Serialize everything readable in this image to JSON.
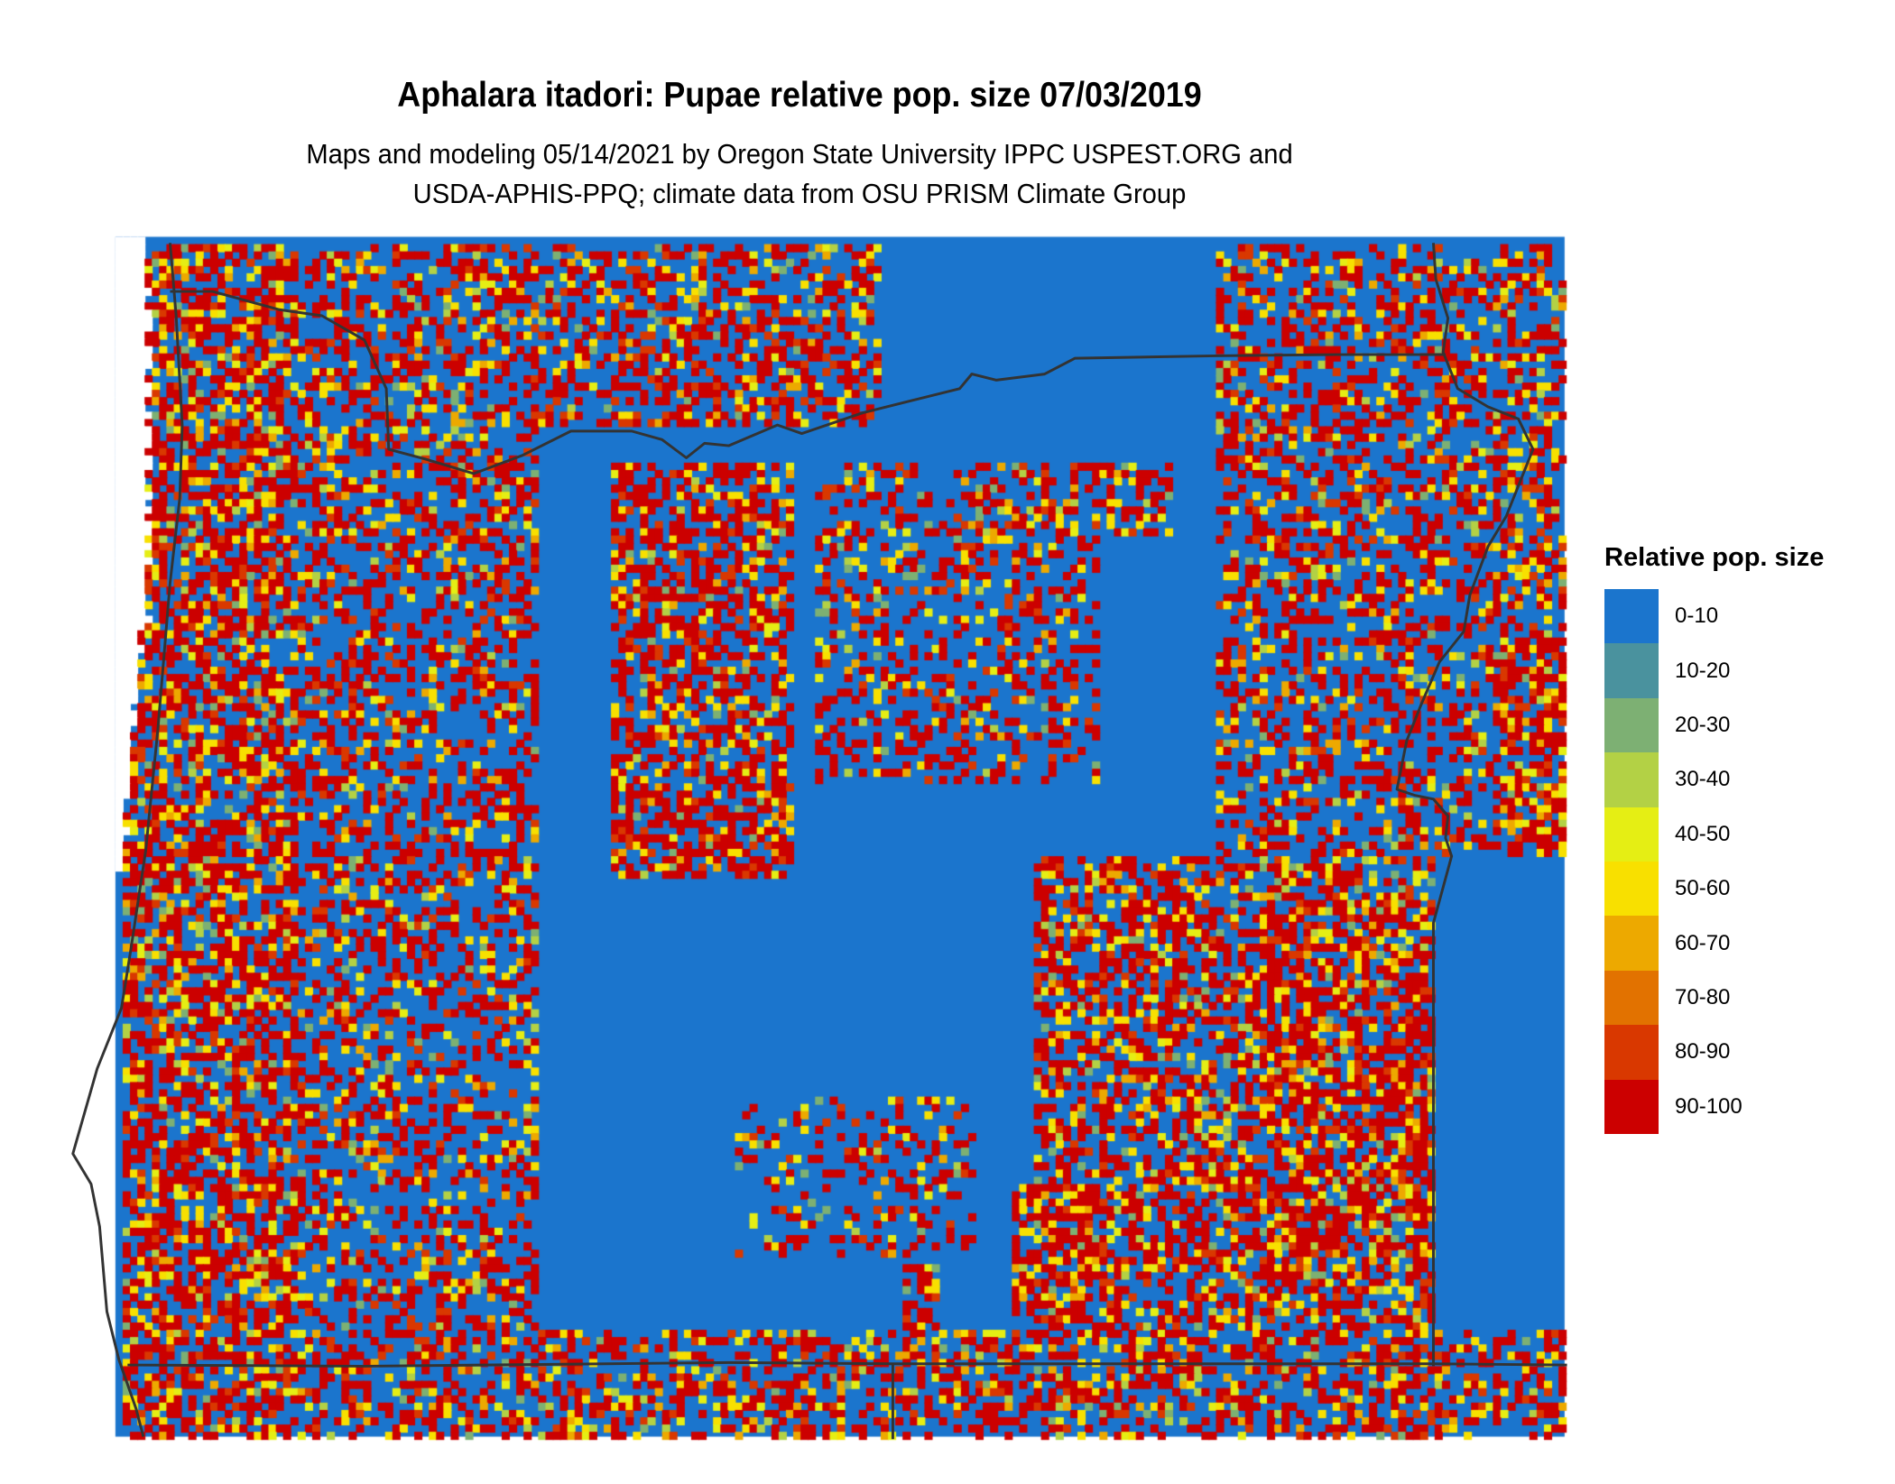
{
  "title": "Aphalara itadori: Pupae relative pop. size 07/03/2019",
  "subtitle_lines": [
    "Maps and modeling 05/14/2021 by Oregon State University IPPC USPEST.ORG and",
    "USDA-APHIS-PPQ; climate data from OSU PRISM Climate Group"
  ],
  "legend": {
    "title": "Relative pop. size",
    "classes": [
      {
        "label": "0-10",
        "color": "#1B75CD"
      },
      {
        "label": "10-20",
        "color": "#4A929E"
      },
      {
        "label": "20-30",
        "color": "#7DB073"
      },
      {
        "label": "30-40",
        "color": "#B3D145"
      },
      {
        "label": "40-50",
        "color": "#E5EE14"
      },
      {
        "label": "50-60",
        "color": "#F8E000"
      },
      {
        "label": "60-70",
        "color": "#EDA900"
      },
      {
        "label": "70-80",
        "color": "#E27200"
      },
      {
        "label": "80-90",
        "color": "#D93800"
      },
      {
        "label": "90-100",
        "color": "#CC0000"
      }
    ]
  },
  "border_color": "#333333"
}
